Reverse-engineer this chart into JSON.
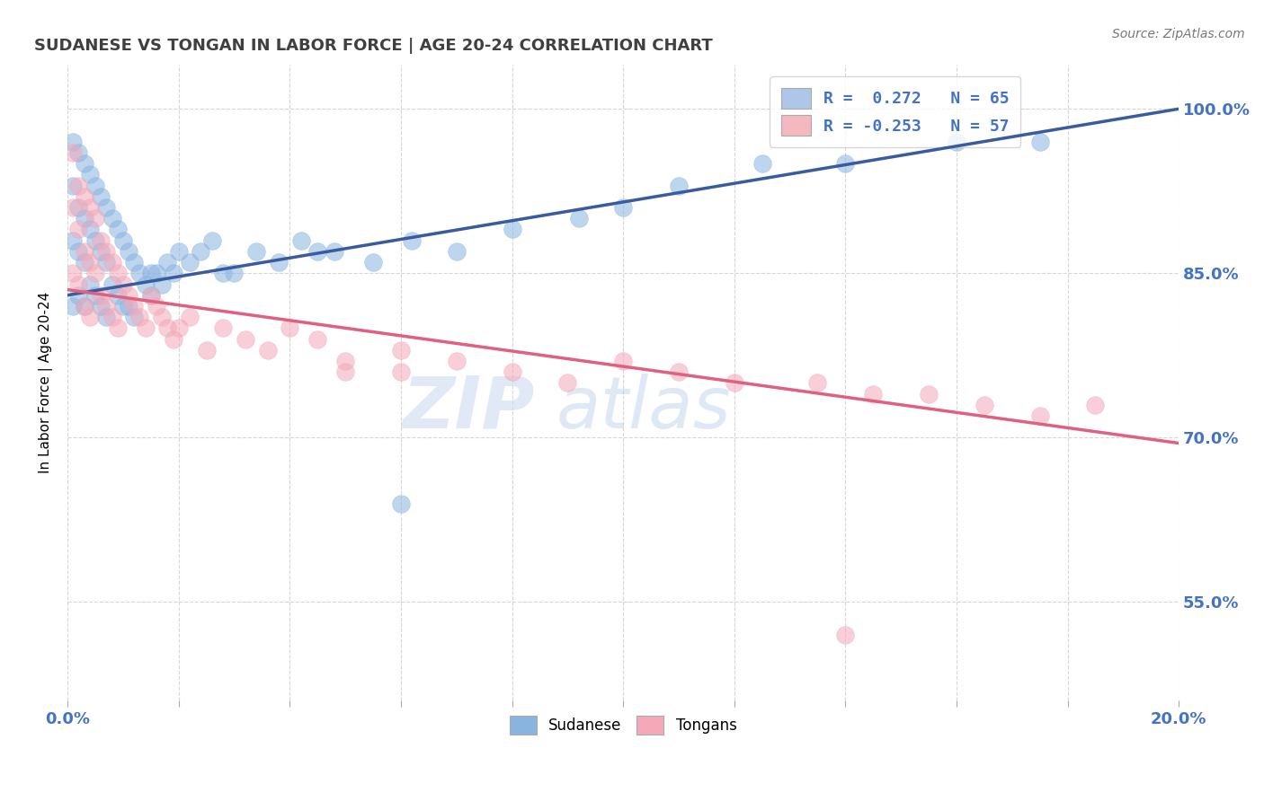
{
  "title": "SUDANESE VS TONGAN IN LABOR FORCE | AGE 20-24 CORRELATION CHART",
  "source": "Source: ZipAtlas.com",
  "ylabel": "In Labor Force | Age 20-24",
  "legend_entries": [
    {
      "label": "R =  0.272   N = 65",
      "color": "#aec6e8"
    },
    {
      "label": "R = -0.253   N = 57",
      "color": "#f4b8c1"
    }
  ],
  "bottom_legend": [
    "Sudanese",
    "Tongans"
  ],
  "blue_color": "#8ab4e0",
  "pink_color": "#f4a8b8",
  "blue_line_color": "#3a5ba0",
  "pink_line_color": "#e06080",
  "watermark_zip": "ZIP",
  "watermark_atlas": "atlas",
  "xlim": [
    0.0,
    0.2
  ],
  "ylim": [
    0.46,
    1.04
  ],
  "yticks_right": [
    1.0,
    0.85,
    0.7,
    0.55
  ],
  "ytick_labels_right": [
    "100.0%",
    "85.0%",
    "70.0%",
    "55.0%"
  ],
  "blue_line_x": [
    0.0,
    0.2
  ],
  "blue_line_y": [
    0.83,
    1.0
  ],
  "pink_line_x": [
    0.0,
    0.2
  ],
  "pink_line_y": [
    0.835,
    0.695
  ],
  "blue_scatter_x": [
    0.001,
    0.001,
    0.001,
    0.001,
    0.002,
    0.002,
    0.002,
    0.002,
    0.003,
    0.003,
    0.003,
    0.003,
    0.004,
    0.004,
    0.004,
    0.005,
    0.005,
    0.005,
    0.006,
    0.006,
    0.006,
    0.007,
    0.007,
    0.007,
    0.008,
    0.008,
    0.009,
    0.009,
    0.01,
    0.01,
    0.011,
    0.011,
    0.012,
    0.012,
    0.013,
    0.014,
    0.015,
    0.016,
    0.017,
    0.018,
    0.019,
    0.02,
    0.022,
    0.024,
    0.026,
    0.03,
    0.034,
    0.038,
    0.042,
    0.048,
    0.055,
    0.062,
    0.07,
    0.08,
    0.092,
    0.1,
    0.11,
    0.125,
    0.14,
    0.16,
    0.175,
    0.06,
    0.045,
    0.028,
    0.015
  ],
  "blue_scatter_y": [
    0.97,
    0.93,
    0.88,
    0.82,
    0.96,
    0.91,
    0.87,
    0.83,
    0.95,
    0.9,
    0.86,
    0.82,
    0.94,
    0.89,
    0.84,
    0.93,
    0.88,
    0.83,
    0.92,
    0.87,
    0.82,
    0.91,
    0.86,
    0.81,
    0.9,
    0.84,
    0.89,
    0.83,
    0.88,
    0.82,
    0.87,
    0.82,
    0.86,
    0.81,
    0.85,
    0.84,
    0.83,
    0.85,
    0.84,
    0.86,
    0.85,
    0.87,
    0.86,
    0.87,
    0.88,
    0.85,
    0.87,
    0.86,
    0.88,
    0.87,
    0.86,
    0.88,
    0.87,
    0.89,
    0.9,
    0.91,
    0.93,
    0.95,
    0.95,
    0.97,
    0.97,
    0.64,
    0.87,
    0.85,
    0.85
  ],
  "pink_scatter_x": [
    0.001,
    0.001,
    0.001,
    0.002,
    0.002,
    0.002,
    0.003,
    0.003,
    0.003,
    0.004,
    0.004,
    0.004,
    0.005,
    0.005,
    0.006,
    0.006,
    0.007,
    0.007,
    0.008,
    0.008,
    0.009,
    0.009,
    0.01,
    0.011,
    0.012,
    0.013,
    0.014,
    0.015,
    0.016,
    0.017,
    0.018,
    0.019,
    0.02,
    0.022,
    0.025,
    0.028,
    0.032,
    0.036,
    0.04,
    0.045,
    0.05,
    0.06,
    0.07,
    0.08,
    0.09,
    0.1,
    0.11,
    0.12,
    0.05,
    0.06,
    0.135,
    0.145,
    0.155,
    0.165,
    0.175,
    0.185,
    0.14
  ],
  "pink_scatter_y": [
    0.96,
    0.91,
    0.85,
    0.93,
    0.89,
    0.84,
    0.92,
    0.87,
    0.82,
    0.91,
    0.86,
    0.81,
    0.9,
    0.85,
    0.88,
    0.83,
    0.87,
    0.82,
    0.86,
    0.81,
    0.85,
    0.8,
    0.84,
    0.83,
    0.82,
    0.81,
    0.8,
    0.83,
    0.82,
    0.81,
    0.8,
    0.79,
    0.8,
    0.81,
    0.78,
    0.8,
    0.79,
    0.78,
    0.8,
    0.79,
    0.77,
    0.78,
    0.77,
    0.76,
    0.75,
    0.77,
    0.76,
    0.75,
    0.76,
    0.76,
    0.75,
    0.74,
    0.74,
    0.73,
    0.72,
    0.73,
    0.52
  ],
  "background_color": "#ffffff",
  "grid_color": "#cccccc",
  "title_color": "#404040",
  "source_color": "#777777",
  "axis_label_color": "#4472c4",
  "dot_size": 200,
  "dot_alpha": 0.55
}
